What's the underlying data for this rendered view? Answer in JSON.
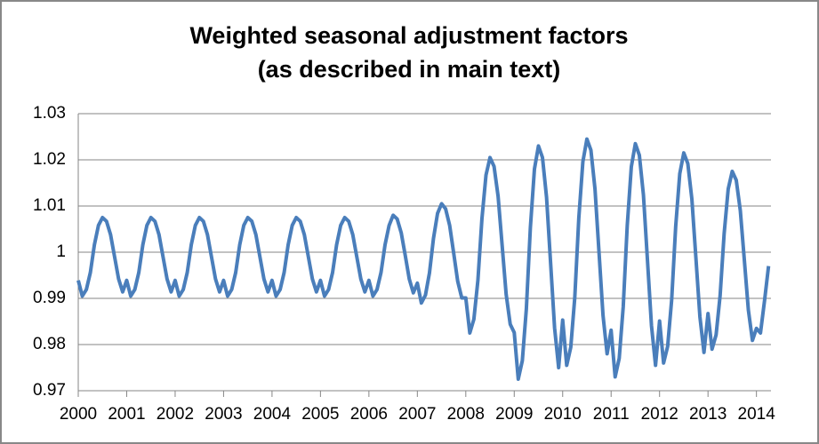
{
  "chart_data": {
    "type": "line",
    "title": [
      "Weighted seasonal adjustment factors",
      "(as described in main text)"
    ],
    "xlim": [
      2000,
      2014.3
    ],
    "xticks": [
      2000,
      2001,
      2002,
      2003,
      2004,
      2005,
      2006,
      2007,
      2008,
      2009,
      2010,
      2011,
      2012,
      2013,
      2014
    ],
    "ylim": [
      0.97,
      1.03
    ],
    "yticks": [
      0.97,
      0.98,
      0.99,
      1,
      1.01,
      1.02,
      1.03
    ],
    "grid": true,
    "x": [
      2000,
      2000.083,
      2000.167,
      2000.25,
      2000.333,
      2000.417,
      2000.5,
      2000.583,
      2000.667,
      2000.75,
      2000.833,
      2000.917,
      2001,
      2001.083,
      2001.167,
      2001.25,
      2001.333,
      2001.417,
      2001.5,
      2001.583,
      2001.667,
      2001.75,
      2001.833,
      2001.917,
      2002,
      2002.083,
      2002.167,
      2002.25,
      2002.333,
      2002.417,
      2002.5,
      2002.583,
      2002.667,
      2002.75,
      2002.833,
      2002.917,
      2003,
      2003.083,
      2003.167,
      2003.25,
      2003.333,
      2003.417,
      2003.5,
      2003.583,
      2003.667,
      2003.75,
      2003.833,
      2003.917,
      2004,
      2004.083,
      2004.167,
      2004.25,
      2004.333,
      2004.417,
      2004.5,
      2004.583,
      2004.667,
      2004.75,
      2004.833,
      2004.917,
      2005,
      2005.083,
      2005.167,
      2005.25,
      2005.333,
      2005.417,
      2005.5,
      2005.583,
      2005.667,
      2005.75,
      2005.833,
      2005.917,
      2006,
      2006.083,
      2006.167,
      2006.25,
      2006.333,
      2006.417,
      2006.5,
      2006.583,
      2006.667,
      2006.75,
      2006.833,
      2006.917,
      2007,
      2007.083,
      2007.167,
      2007.25,
      2007.333,
      2007.417,
      2007.5,
      2007.583,
      2007.667,
      2007.75,
      2007.833,
      2007.917,
      2008,
      2008.083,
      2008.167,
      2008.25,
      2008.333,
      2008.417,
      2008.5,
      2008.583,
      2008.667,
      2008.75,
      2008.833,
      2008.917,
      2009,
      2009.083,
      2009.167,
      2009.25,
      2009.333,
      2009.417,
      2009.5,
      2009.583,
      2009.667,
      2009.75,
      2009.833,
      2009.917,
      2010,
      2010.083,
      2010.167,
      2010.25,
      2010.333,
      2010.417,
      2010.5,
      2010.583,
      2010.667,
      2010.75,
      2010.833,
      2010.917,
      2011,
      2011.083,
      2011.167,
      2011.25,
      2011.333,
      2011.417,
      2011.5,
      2011.583,
      2011.667,
      2011.75,
      2011.833,
      2011.917,
      2012,
      2012.083,
      2012.167,
      2012.25,
      2012.333,
      2012.417,
      2012.5,
      2012.583,
      2012.667,
      2012.75,
      2012.833,
      2012.917,
      2013,
      2013.083,
      2013.167,
      2013.25,
      2013.333,
      2013.417,
      2013.5,
      2013.583,
      2013.667,
      2013.75,
      2013.833,
      2013.917,
      2014,
      2014.083,
      2014.167,
      2014.25
    ],
    "series": [
      {
        "color": "#4a7ebb",
        "values": [
          0.9939,
          0.9905,
          0.9919,
          0.9956,
          1.0016,
          1.0058,
          1.0075,
          1.0067,
          1.0038,
          0.999,
          0.9942,
          0.9914,
          0.9939,
          0.9905,
          0.9919,
          0.9956,
          1.0016,
          1.0058,
          1.0075,
          1.0067,
          1.0038,
          0.999,
          0.9942,
          0.9914,
          0.9939,
          0.9905,
          0.9919,
          0.9956,
          1.0016,
          1.0058,
          1.0075,
          1.0067,
          1.0038,
          0.999,
          0.9942,
          0.9914,
          0.9939,
          0.9905,
          0.9919,
          0.9956,
          1.0016,
          1.0058,
          1.0075,
          1.0067,
          1.0038,
          0.999,
          0.9942,
          0.9914,
          0.9939,
          0.9905,
          0.9919,
          0.9956,
          1.0016,
          1.0058,
          1.0075,
          1.0067,
          1.0038,
          0.999,
          0.9942,
          0.9914,
          0.9939,
          0.9905,
          0.9919,
          0.9956,
          1.0016,
          1.0058,
          1.0075,
          1.0067,
          1.0038,
          0.999,
          0.9942,
          0.9914,
          0.9939,
          0.9905,
          0.9919,
          0.9956,
          1.0016,
          1.0058,
          1.008,
          1.0072,
          1.0042,
          0.9993,
          0.9942,
          0.9912,
          0.9933,
          0.989,
          0.9907,
          0.9955,
          1.003,
          1.0084,
          1.0105,
          1.0094,
          1.0058,
          0.9998,
          0.9937,
          0.9901,
          0.9901,
          0.9825,
          0.9855,
          0.9939,
          1.0072,
          1.0167,
          1.0205,
          1.0186,
          1.0121,
          1.0015,
          0.9909,
          0.9844,
          0.9826,
          0.9725,
          0.9765,
          0.9877,
          1.0053,
          1.018,
          1.023,
          1.0205,
          1.0119,
          0.9978,
          0.9836,
          0.975,
          0.9853,
          0.9755,
          0.9794,
          0.9902,
          1.0074,
          1.0196,
          1.0245,
          1.0221,
          1.0137,
          1.0,
          0.9863,
          0.978,
          0.9831,
          0.973,
          0.977,
          0.9882,
          1.0058,
          1.0185,
          1.0235,
          1.021,
          1.0124,
          0.9983,
          0.9841,
          0.9755,
          0.9851,
          0.976,
          0.9796,
          0.9897,
          1.0056,
          1.017,
          1.0215,
          1.0192,
          1.0115,
          0.9988,
          0.986,
          0.9783,
          0.9867,
          0.979,
          0.9821,
          0.9906,
          1.004,
          1.0137,
          1.0175,
          1.0156,
          1.009,
          0.9983,
          0.9875,
          0.9809,
          0.9835,
          0.9825,
          0.9895,
          0.997
        ]
      }
    ]
  }
}
